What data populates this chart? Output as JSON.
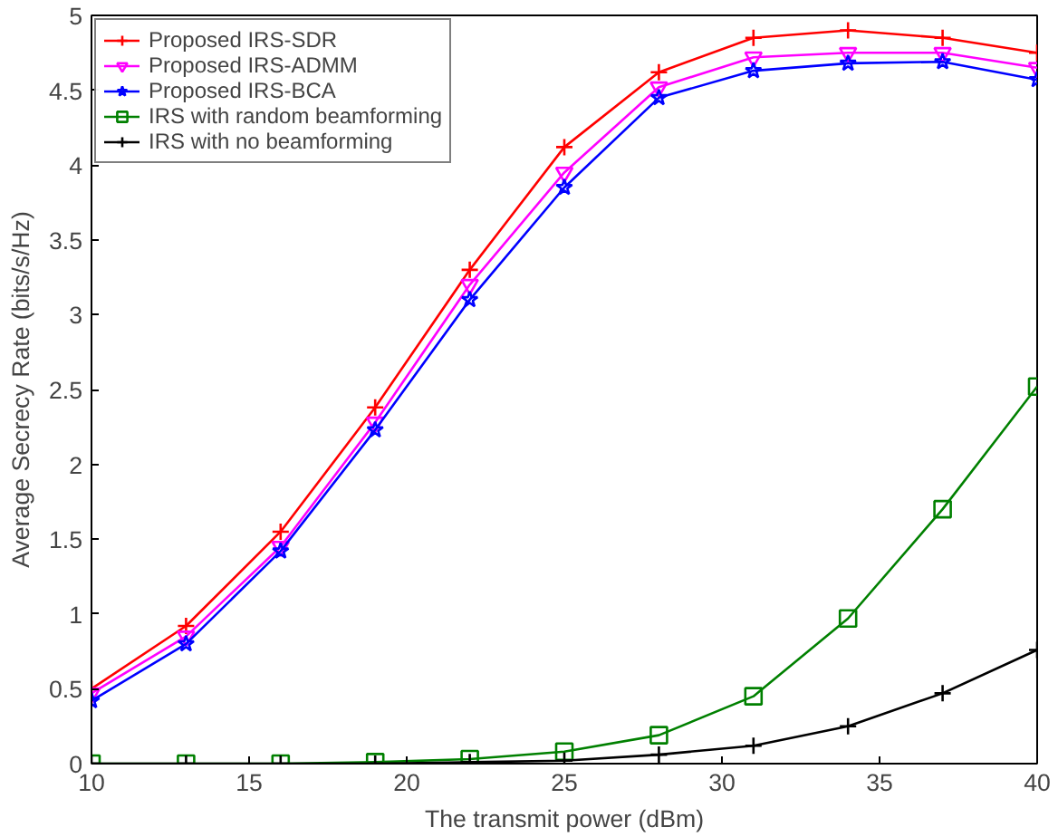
{
  "chart_data": {
    "type": "line",
    "xlabel": "The transmit power (dBm)",
    "ylabel": "Average Secrecy Rate (bits/s/Hz)",
    "x": [
      10,
      13,
      16,
      19,
      22,
      25,
      28,
      31,
      34,
      37,
      40
    ],
    "xlim": [
      10,
      40
    ],
    "xticks": [
      10,
      15,
      20,
      25,
      30,
      35,
      40
    ],
    "ylim": [
      0,
      5
    ],
    "yticks": [
      0,
      0.5,
      1,
      1.5,
      2,
      2.5,
      3,
      3.5,
      4,
      4.5,
      5
    ],
    "grid": false,
    "legend": "top left",
    "line_style": "solid",
    "series": [
      {
        "name": "Proposed IRS-SDR",
        "color": "#ff0000",
        "marker": "cross",
        "values": [
          0.5,
          0.92,
          1.55,
          2.38,
          3.3,
          4.12,
          4.62,
          4.85,
          4.9,
          4.85,
          4.75
        ]
      },
      {
        "name": "Proposed IRS-ADMM",
        "color": "#ff00ff",
        "marker": "triangle",
        "values": [
          0.47,
          0.85,
          1.45,
          2.28,
          3.2,
          3.95,
          4.52,
          4.72,
          4.75,
          4.75,
          4.65
        ]
      },
      {
        "name": "Proposed IRS-BCA",
        "color": "#0000ff",
        "marker": "star",
        "values": [
          0.42,
          0.8,
          1.42,
          2.23,
          3.1,
          3.85,
          4.45,
          4.63,
          4.68,
          4.69,
          4.57
        ]
      },
      {
        "name": "IRS with random beamforming",
        "color": "#008000",
        "marker": "square",
        "values": [
          0,
          0,
          0,
          0.01,
          0.03,
          0.08,
          0.19,
          0.45,
          0.97,
          1.7,
          2.52
        ]
      },
      {
        "name": "IRS with no beamforming",
        "color": "#000000",
        "marker": "cross",
        "values": [
          0,
          0,
          0,
          0,
          0.01,
          0.02,
          0.06,
          0.12,
          0.25,
          0.47,
          0.76
        ]
      }
    ]
  }
}
